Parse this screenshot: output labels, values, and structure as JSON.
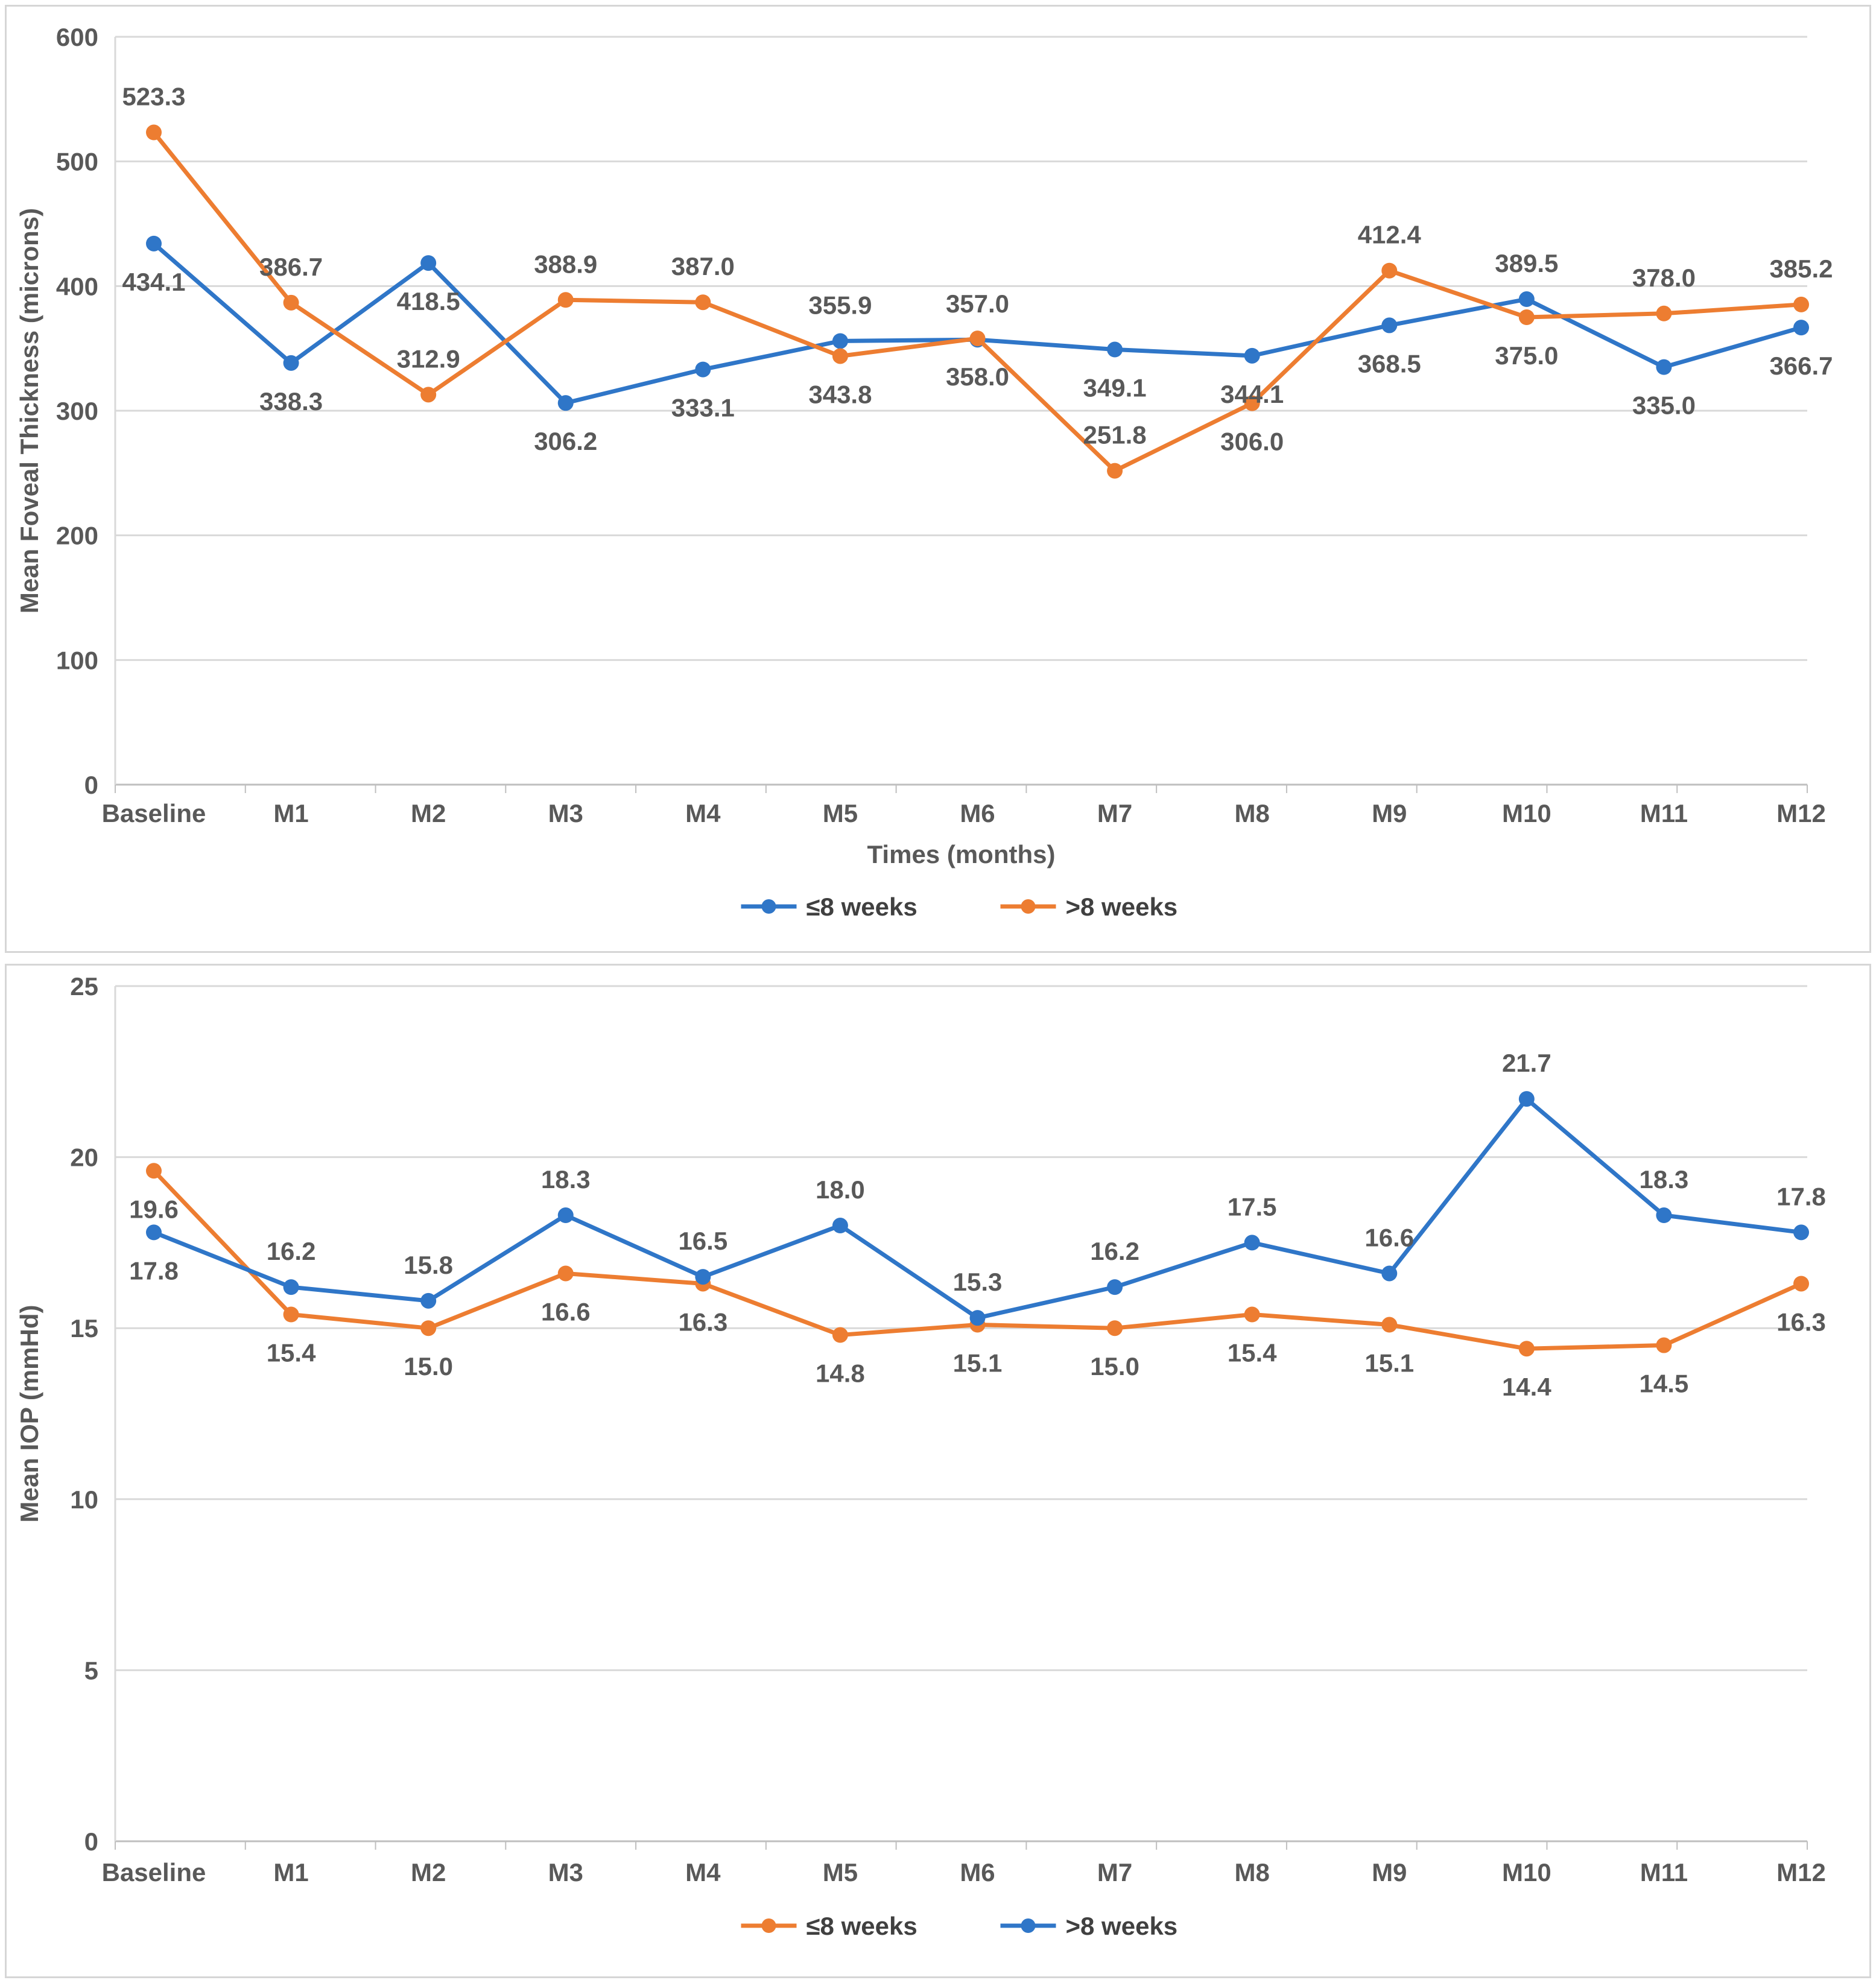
{
  "colors": {
    "series_blue": "#2F76C8",
    "series_orange": "#ED7D31",
    "text": "#595959",
    "gridline": "#D9D9D9",
    "axis_line": "#BFBFBF",
    "panel_border": "#D6D6D6",
    "background": "#FFFFFF"
  },
  "chart_data": [
    {
      "type": "line",
      "title": "",
      "ylabel": "Mean Foveal Thickness (microns)",
      "xlabel": "Times (months)",
      "ylim": [
        0,
        600
      ],
      "ytick_step": 100,
      "grid": true,
      "legend_position": "bottom",
      "yticks": [
        "600",
        "500",
        "400",
        "300",
        "200",
        "100",
        "0"
      ],
      "categories": [
        "Baseline",
        "M1",
        "M2",
        "M3",
        "M4",
        "M5",
        "M6",
        "M7",
        "M8",
        "M9",
        "M10",
        "M11",
        "M12"
      ],
      "series": [
        {
          "name": "≤8 weeks",
          "color": "#2F76C8",
          "marker": "circle",
          "values": [
            434.1,
            338.3,
            418.5,
            306.2,
            333.1,
            355.9,
            357.0,
            349.1,
            344.1,
            368.5,
            389.5,
            335.0,
            366.7
          ],
          "labels": [
            "434.1",
            "338.3",
            "418.5",
            "306.2",
            "333.1",
            "355.9",
            "357.0",
            "349.1",
            "344.1",
            "368.5",
            "389.5",
            "335.0",
            "366.7"
          ],
          "label_pos": [
            "below",
            "below",
            "below",
            "below",
            "below",
            "above",
            "above",
            "below",
            "below",
            "below",
            "above",
            "below",
            "below"
          ]
        },
        {
          "name": ">8 weeks",
          "color": "#ED7D31",
          "marker": "circle",
          "values": [
            523.3,
            386.7,
            312.9,
            388.9,
            387.0,
            343.8,
            358.0,
            251.8,
            306.0,
            412.4,
            375.0,
            378.0,
            385.2
          ],
          "labels": [
            "523.3",
            "386.7",
            "312.9",
            "388.9",
            "387.0",
            "343.8",
            "358.0",
            "251.8",
            "306.0",
            "412.4",
            "375.0",
            "378.0",
            "385.2"
          ],
          "label_pos": [
            "above",
            "above",
            "above",
            "above",
            "above",
            "below",
            "below",
            "above",
            "below",
            "above",
            "below",
            "above",
            "above"
          ]
        }
      ]
    },
    {
      "type": "line",
      "title": "",
      "ylabel": "Mean IOP (mmHd)",
      "xlabel": "",
      "ylim": [
        0,
        25
      ],
      "ytick_step": 5,
      "grid": true,
      "legend_position": "bottom",
      "yticks": [
        "25",
        "20",
        "15",
        "10",
        "5",
        "0"
      ],
      "categories": [
        "Baseline",
        "M1",
        "M2",
        "M3",
        "M4",
        "M5",
        "M6",
        "M7",
        "M8",
        "M9",
        "M10",
        "M11",
        "M12"
      ],
      "series": [
        {
          "name": "≤8 weeks",
          "color": "#ED7D31",
          "marker": "circle",
          "values": [
            19.6,
            15.4,
            15.0,
            16.6,
            16.3,
            14.8,
            15.1,
            15.0,
            15.4,
            15.1,
            14.4,
            14.5,
            16.3
          ],
          "labels": [
            "19.6",
            "15.4",
            "15.0",
            "16.6",
            "16.3",
            "14.8",
            "15.1",
            "15.0",
            "15.4",
            "15.1",
            "14.4",
            "14.5",
            "16.3"
          ],
          "label_pos": [
            "below",
            "below",
            "below",
            "below",
            "below",
            "below",
            "below",
            "below",
            "below",
            "below",
            "below",
            "below",
            "below"
          ]
        },
        {
          "name": ">8 weeks",
          "color": "#2F76C8",
          "marker": "circle",
          "values": [
            17.8,
            16.2,
            15.8,
            18.3,
            16.5,
            18.0,
            15.3,
            16.2,
            17.5,
            16.6,
            21.7,
            18.3,
            17.8
          ],
          "labels": [
            "17.8",
            "16.2",
            "15.8",
            "18.3",
            "16.5",
            "18.0",
            "15.3",
            "16.2",
            "17.5",
            "16.6",
            "21.7",
            "18.3",
            "17.8"
          ],
          "label_pos": [
            "below",
            "above",
            "above",
            "above",
            "above",
            "above",
            "above",
            "above",
            "above",
            "above",
            "above",
            "above",
            "above"
          ]
        }
      ]
    }
  ]
}
